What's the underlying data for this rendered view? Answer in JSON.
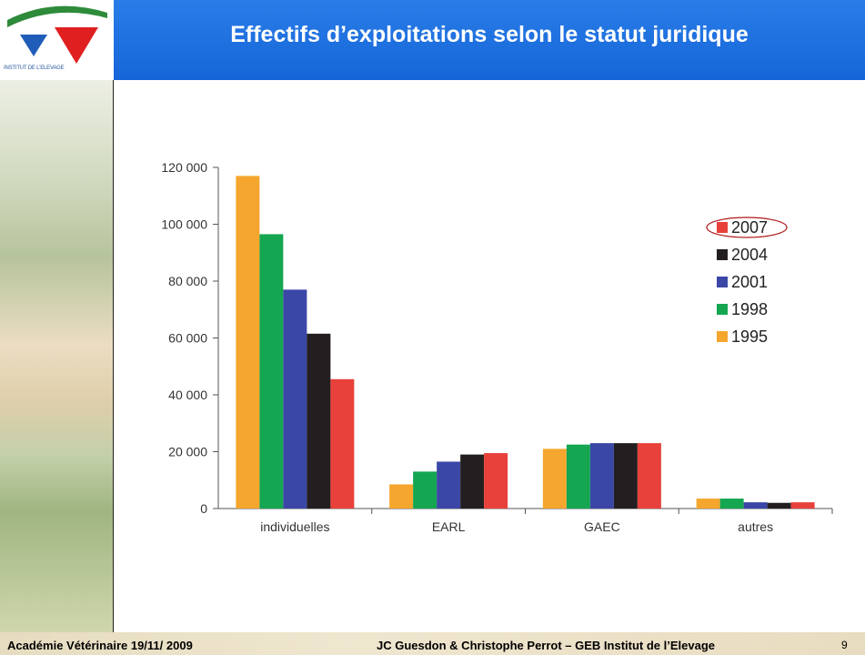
{
  "header": {
    "title": "Effectifs d’exploitations selon le statut juridique"
  },
  "logo": {
    "text": "INSTITUT DE L'ELEVAGE"
  },
  "footer": {
    "left": "Académie Vétérinaire 19/11/ 2009",
    "center": "JC Guesdon & Christophe Perrot – GEB Institut de l’Elevage",
    "page": "9"
  },
  "chart_data": {
    "type": "bar",
    "categories": [
      "individuelles",
      "EARL",
      "GAEC",
      "autres"
    ],
    "series": [
      {
        "name": "1995",
        "color": "#f5a62e",
        "values": [
          117000,
          8500,
          21000,
          3500
        ]
      },
      {
        "name": "1998",
        "color": "#14a651",
        "values": [
          96500,
          13000,
          22500,
          3500
        ]
      },
      {
        "name": "2001",
        "color": "#3b47a6",
        "values": [
          77000,
          16500,
          23000,
          2200
        ]
      },
      {
        "name": "2004",
        "color": "#231f20",
        "values": [
          61500,
          19000,
          23000,
          2000
        ]
      },
      {
        "name": "2007",
        "color": "#e8403a",
        "values": [
          45500,
          19500,
          23000,
          2200
        ]
      }
    ],
    "ylim": [
      0,
      120000
    ],
    "yticks": [
      0,
      {
        "value": 20000,
        "label": "20 000"
      },
      {
        "value": 40000,
        "label": "40 000"
      },
      {
        "value": 60000,
        "label": "60 000"
      },
      {
        "value": 80000,
        "label": "80 000"
      },
      {
        "value": 100000,
        "label": "100 000"
      },
      {
        "value": 120000,
        "label": "120 000"
      }
    ],
    "grid": false
  }
}
